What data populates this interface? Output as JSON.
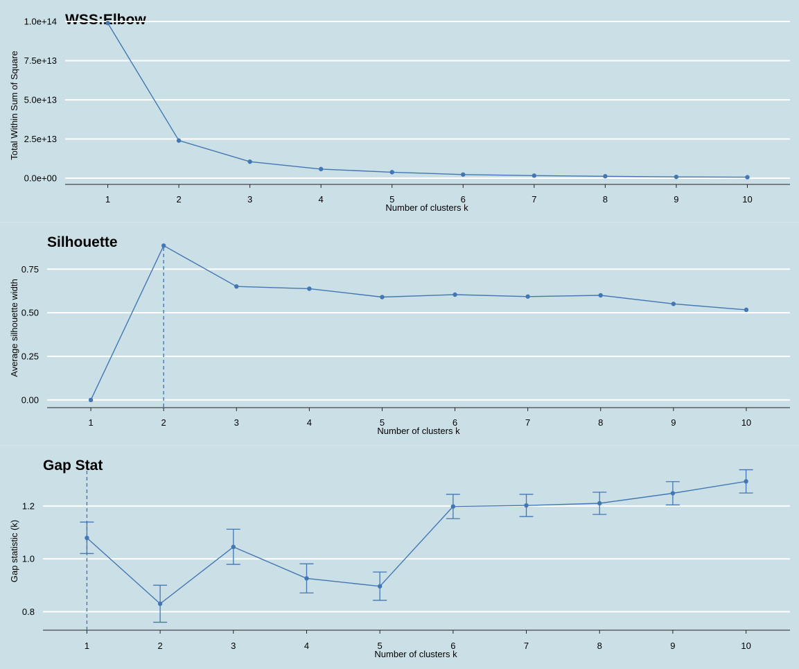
{
  "chart_data": [
    {
      "type": "line",
      "title": "WSS:Elbow",
      "xlabel": "Number of clusters k",
      "ylabel": "Total Within Sum of Square",
      "x": [
        1,
        2,
        3,
        4,
        5,
        6,
        7,
        8,
        9,
        10
      ],
      "y": [
        99000000000000.0,
        24000000000000.0,
        10500000000000.0,
        5800000000000.0,
        3800000000000.0,
        2300000000000.0,
        1600000000000.0,
        1200000000000.0,
        800000000000.0,
        600000000000.0
      ],
      "yticks": [
        0,
        25000000000000.0,
        50000000000000.0,
        75000000000000.0,
        100000000000000.0
      ],
      "ytick_labels": [
        "0.0e+00",
        "2.5e+13",
        "5.0e+13",
        "7.5e+13",
        "1.0e+14"
      ],
      "ylim": [
        -4000000000000.0,
        104000000000000.0
      ],
      "xlim": [
        0.4,
        10.6
      ],
      "grid": "horizontal",
      "line_color": "#4277b3"
    },
    {
      "type": "line",
      "title": "Silhouette",
      "xlabel": "Number of clusters k",
      "ylabel": "Average silhouette width",
      "x": [
        1,
        2,
        3,
        4,
        5,
        6,
        7,
        8,
        9,
        10
      ],
      "y": [
        0.0,
        0.885,
        0.651,
        0.638,
        0.59,
        0.604,
        0.593,
        0.6,
        0.551,
        0.517
      ],
      "vline": 2,
      "yticks": [
        0,
        0.25,
        0.5,
        0.75
      ],
      "ytick_labels": [
        "0.00",
        "0.25",
        "0.50",
        "0.75"
      ],
      "ylim": [
        -0.044,
        0.93
      ],
      "xlim": [
        0.4,
        10.6
      ],
      "grid": "horizontal",
      "line_color": "#4277b3"
    },
    {
      "type": "line",
      "title": "Gap Stat",
      "xlabel": "Number of clusters k",
      "ylabel": "Gap statistic (k)",
      "x": [
        1,
        2,
        3,
        4,
        5,
        6,
        7,
        8,
        9,
        10
      ],
      "y": [
        1.079,
        0.83,
        1.045,
        0.926,
        0.896,
        1.198,
        1.202,
        1.21,
        1.248,
        1.293
      ],
      "err_lower": [
        1.02,
        0.76,
        0.979,
        0.871,
        0.843,
        1.152,
        1.16,
        1.168,
        1.204,
        1.249
      ],
      "err_upper": [
        1.139,
        0.9,
        1.112,
        0.981,
        0.95,
        1.244,
        1.244,
        1.252,
        1.292,
        1.337
      ],
      "vline": 1,
      "yticks": [
        0.8,
        1.0,
        1.2
      ],
      "ytick_labels": [
        "0.8",
        "1.0",
        "1.2"
      ],
      "ylim": [
        0.73,
        1.37
      ],
      "xlim": [
        0.4,
        10.6
      ],
      "grid": "horizontal",
      "line_color": "#4277b3"
    }
  ]
}
